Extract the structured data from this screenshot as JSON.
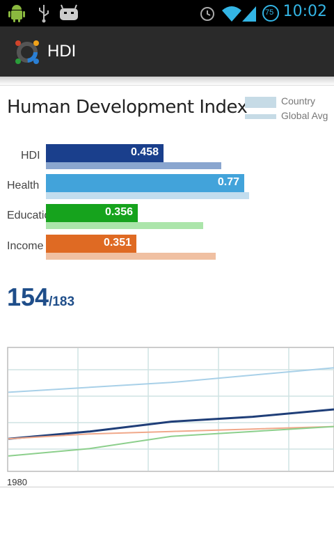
{
  "status_bar": {
    "time": "10:02",
    "battery_level": "75",
    "icons": [
      "android-icon",
      "usb-icon",
      "cyanogen-icon",
      "alarm-icon",
      "wifi-icon",
      "signal-icon",
      "battery-icon"
    ]
  },
  "app": {
    "title": "HDI",
    "icon": "hdi-logo-icon"
  },
  "card": {
    "title": "Human Development Index",
    "legend": {
      "country": "Country",
      "global": "Global Avg"
    },
    "rank": {
      "value": "154",
      "total": "/183"
    },
    "year_start": "1980"
  },
  "chart_data": [
    {
      "type": "bar",
      "categories": [
        "HDI",
        "Health",
        "Education",
        "Income"
      ],
      "series": [
        {
          "name": "Country",
          "values": [
            0.458,
            0.77,
            0.356,
            0.351
          ],
          "labels": [
            "0.458",
            "0.77",
            "0.356",
            "0.351"
          ]
        },
        {
          "name": "Global Avg",
          "values": [
            0.682,
            0.788,
            0.611,
            0.66
          ]
        }
      ],
      "colors": {
        "country": [
          "#1a3f8c",
          "#42a3da",
          "#16a31d",
          "#df6a23"
        ],
        "global": [
          "#8aa6cf",
          "#c2ddee",
          "#abe5aa",
          "#f0c0a2"
        ]
      },
      "xlim": [
        0,
        1
      ]
    },
    {
      "type": "line",
      "xlabel": "",
      "x_start": 1980,
      "ylim": [
        0.3,
        0.8
      ],
      "grid": true,
      "series": [
        {
          "color": "#a8d0e8",
          "values": [
            0.62,
            0.64,
            0.66,
            0.69,
            0.72
          ]
        },
        {
          "color": "#1f3e78",
          "values": [
            0.43,
            0.46,
            0.5,
            0.52,
            0.55
          ]
        },
        {
          "color": "#f0a88a",
          "values": [
            0.43,
            0.45,
            0.46,
            0.47,
            0.48
          ]
        },
        {
          "color": "#8ccf8c",
          "values": [
            0.36,
            0.39,
            0.44,
            0.46,
            0.48
          ]
        }
      ]
    }
  ]
}
